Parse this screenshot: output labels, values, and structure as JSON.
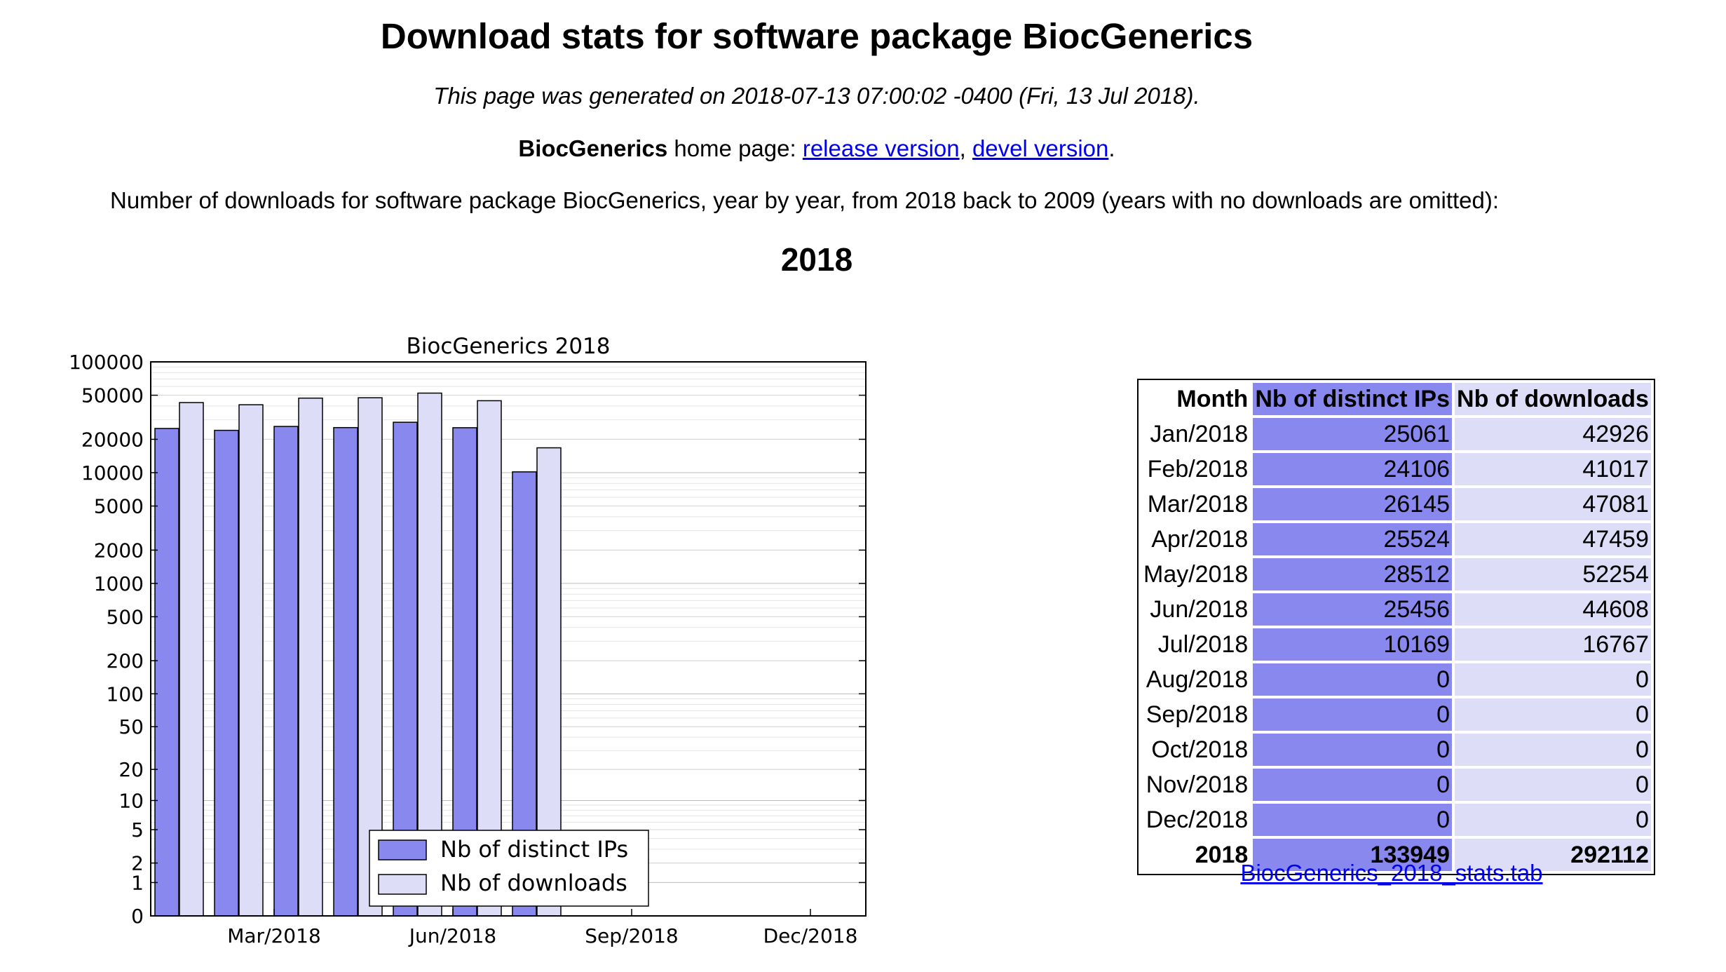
{
  "header": {
    "title": "Download stats for software package BiocGenerics",
    "generated": "This page was generated on 2018-07-13 07:00:02 -0400 (Fri, 13 Jul 2018).",
    "pkg_name": "BiocGenerics",
    "home_page_text": " home page: ",
    "release_link": "release version",
    "comma": ", ",
    "devel_link": "devel version",
    "period": ".",
    "intro": "Number of downloads for software package BiocGenerics, year by year, from 2018 back to 2009 (years with no downloads are omitted):",
    "year": "2018"
  },
  "chart_data": {
    "type": "bar",
    "title": "BiocGenerics 2018",
    "xlabel": "",
    "ylabel": "",
    "yscale": "log (symlog, 0 at base)",
    "categories": [
      "Jan/2018",
      "Feb/2018",
      "Mar/2018",
      "Apr/2018",
      "May/2018",
      "Jun/2018",
      "Jul/2018",
      "Aug/2018",
      "Sep/2018",
      "Oct/2018",
      "Nov/2018",
      "Dec/2018"
    ],
    "x_tick_labels": [
      "Mar/2018",
      "Jun/2018",
      "Sep/2018",
      "Dec/2018"
    ],
    "y_tick_labels": [
      "100000",
      "50000",
      "20000",
      "10000",
      "5000",
      "2000",
      "1000",
      "500",
      "200",
      "100",
      "50",
      "20",
      "10",
      "5",
      "2",
      "1",
      "0"
    ],
    "series": [
      {
        "name": "Nb of distinct IPs",
        "color": "#8888ee",
        "values": [
          25061,
          24106,
          26145,
          25524,
          28512,
          25456,
          10169,
          0,
          0,
          0,
          0,
          0
        ]
      },
      {
        "name": "Nb of downloads",
        "color": "#ddddf8",
        "values": [
          42926,
          41017,
          47081,
          47459,
          52254,
          44608,
          16767,
          0,
          0,
          0,
          0,
          0
        ]
      }
    ],
    "legend_position": "bottom-center",
    "grid": true
  },
  "table": {
    "headers": [
      "Month",
      "Nb of distinct IPs",
      "Nb of downloads"
    ],
    "rows": [
      [
        "Jan/2018",
        "25061",
        "42926"
      ],
      [
        "Feb/2018",
        "24106",
        "41017"
      ],
      [
        "Mar/2018",
        "26145",
        "47081"
      ],
      [
        "Apr/2018",
        "25524",
        "47459"
      ],
      [
        "May/2018",
        "28512",
        "52254"
      ],
      [
        "Jun/2018",
        "25456",
        "44608"
      ],
      [
        "Jul/2018",
        "10169",
        "16767"
      ],
      [
        "Aug/2018",
        "0",
        "0"
      ],
      [
        "Sep/2018",
        "0",
        "0"
      ],
      [
        "Oct/2018",
        "0",
        "0"
      ],
      [
        "Nov/2018",
        "0",
        "0"
      ],
      [
        "Dec/2018",
        "0",
        "0"
      ]
    ],
    "total": [
      "2018",
      "133949",
      "292112"
    ],
    "download_link": "BiocGenerics_2018_stats.tab"
  }
}
